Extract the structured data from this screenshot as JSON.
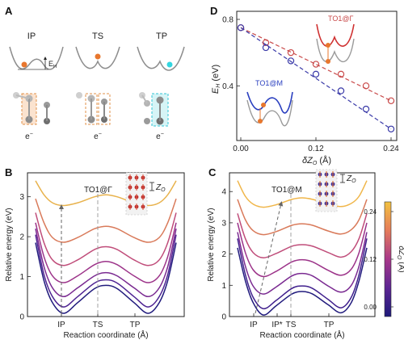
{
  "panels": {
    "a": {
      "label": "A",
      "states": [
        "IP",
        "TS",
        "TP"
      ],
      "eh_label": "E",
      "eh_sub": "H",
      "electron": "e",
      "electron_sup": "−"
    },
    "b": {
      "label": "B"
    },
    "c": {
      "label": "C"
    },
    "d": {
      "label": "D"
    }
  },
  "colors": {
    "dz_scale": [
      "#1e1a7a",
      "#3c1e8c",
      "#5c2593",
      "#812d92",
      "#a8388a",
      "#cc5579",
      "#e57b5a",
      "#f2a850",
      "#f2c240"
    ],
    "series_b": [
      "#211b7d",
      "#4e2392",
      "#7a2a91",
      "#9c3389",
      "#c04d7a",
      "#d97a5a",
      "#e8b24c"
    ],
    "series_c": [
      "#211b7d",
      "#40208d",
      "#7a2a91",
      "#9c3389",
      "#c04d7a",
      "#d97a5a",
      "#f0b64a"
    ],
    "gamma_line": "#c94a4a",
    "m_line": "#3a3aa8",
    "inset_gamma": "#cf3030",
    "inset_m": "#2a3fbf",
    "orange_atom": "#e8772e",
    "cyan_atom": "#33d6e0"
  },
  "chart_data": [
    {
      "id": "B",
      "type": "line",
      "xlabel": "Reaction coordinate (Å)",
      "ylabel": "Relative energy (eV)",
      "ylim": [
        0,
        3.6
      ],
      "y_ticks": [
        0,
        1,
        2,
        3
      ],
      "x_ticks": [
        "IP",
        "TS",
        "TP"
      ],
      "annotation": "TO1@Γ",
      "inset_label": "Z",
      "inset_sub": "O",
      "x": [
        0,
        0.06,
        0.12,
        0.2,
        0.3,
        0.42,
        0.5,
        0.58,
        0.7,
        0.8,
        0.88,
        0.94,
        1.0
      ],
      "series": [
        {
          "values": [
            1.85,
            0.9,
            0.35,
            0.08,
            0.35,
            0.7,
            0.78,
            0.7,
            0.35,
            0.08,
            0.35,
            0.9,
            1.85
          ]
        },
        {
          "values": [
            2.05,
            1.05,
            0.5,
            0.24,
            0.5,
            0.84,
            0.92,
            0.84,
            0.5,
            0.24,
            0.5,
            1.05,
            2.05
          ]
        },
        {
          "values": [
            2.2,
            1.25,
            0.72,
            0.5,
            0.72,
            1.02,
            1.1,
            1.02,
            0.72,
            0.5,
            0.72,
            1.25,
            2.2
          ]
        },
        {
          "values": [
            2.35,
            1.5,
            1.02,
            0.85,
            1.02,
            1.3,
            1.38,
            1.3,
            1.02,
            0.85,
            1.02,
            1.5,
            2.35
          ]
        },
        {
          "values": [
            2.6,
            1.85,
            1.42,
            1.28,
            1.42,
            1.68,
            1.75,
            1.68,
            1.42,
            1.28,
            1.42,
            1.85,
            2.6
          ]
        },
        {
          "values": [
            2.95,
            2.35,
            1.98,
            1.86,
            1.98,
            2.2,
            2.26,
            2.2,
            1.98,
            1.86,
            1.98,
            2.35,
            2.95
          ]
        },
        {
          "values": [
            3.4,
            3.05,
            2.85,
            2.78,
            2.85,
            3.0,
            3.05,
            3.0,
            2.85,
            2.78,
            2.85,
            3.05,
            3.4
          ]
        }
      ]
    },
    {
      "id": "C",
      "type": "line",
      "xlabel": "Reaction coordinate (Å)",
      "ylabel": "Relative energy (eV)",
      "ylim": [
        0,
        4.6
      ],
      "y_ticks": [
        0,
        1,
        2,
        3,
        4
      ],
      "x_ticks": [
        "IP",
        "IP*",
        "TS",
        "TP"
      ],
      "annotation": "TO1@M",
      "inset_label": "Z",
      "inset_sub": "O",
      "x": [
        0,
        0.06,
        0.12,
        0.2,
        0.3,
        0.42,
        0.5,
        0.58,
        0.7,
        0.8,
        0.88,
        0.94,
        1.0
      ],
      "series": [
        {
          "values": [
            2.2,
            1.15,
            0.45,
            0.05,
            0.35,
            0.72,
            0.8,
            0.72,
            0.38,
            0.12,
            0.45,
            1.15,
            2.2
          ]
        },
        {
          "values": [
            2.5,
            1.35,
            0.62,
            0.25,
            0.52,
            0.9,
            0.98,
            0.9,
            0.55,
            0.28,
            0.62,
            1.35,
            2.5
          ]
        },
        {
          "values": [
            2.7,
            1.62,
            0.98,
            0.72,
            0.95,
            1.3,
            1.38,
            1.3,
            0.98,
            0.78,
            1.0,
            1.62,
            2.7
          ]
        },
        {
          "values": [
            3.0,
            2.05,
            1.5,
            1.28,
            1.45,
            1.75,
            1.82,
            1.75,
            1.48,
            1.32,
            1.52,
            2.05,
            3.0
          ]
        },
        {
          "values": [
            3.3,
            2.5,
            2.05,
            1.88,
            2.02,
            2.25,
            2.3,
            2.25,
            2.05,
            1.9,
            2.08,
            2.5,
            3.3
          ]
        },
        {
          "values": [
            3.75,
            3.1,
            2.75,
            2.62,
            2.72,
            2.92,
            2.97,
            2.92,
            2.74,
            2.64,
            2.78,
            3.1,
            3.75
          ]
        },
        {
          "values": [
            4.35,
            3.85,
            3.6,
            3.5,
            3.58,
            3.75,
            3.8,
            3.75,
            3.6,
            3.52,
            3.62,
            3.85,
            4.35
          ]
        }
      ]
    },
    {
      "id": "D",
      "type": "scatter",
      "xlabel": "δZ",
      "xlabel_sub": "O",
      "xlabel_unit": " (Å)",
      "ylabel": "E",
      "ylabel_sub": "H",
      "ylabel_unit": " (eV)",
      "xlim": [
        0,
        0.24
      ],
      "ylim": [
        0.1,
        0.8
      ],
      "x_ticks": [
        "0.00",
        "0.12",
        "0.24"
      ],
      "y_ticks": [
        "0.4",
        "0.8"
      ],
      "series": [
        {
          "name": "TO1@Γ",
          "x": [
            0,
            0.04,
            0.08,
            0.12,
            0.16,
            0.2,
            0.24
          ],
          "y": [
            0.75,
            0.66,
            0.6,
            0.53,
            0.47,
            0.4,
            0.31
          ]
        },
        {
          "name": "TO1@M",
          "x": [
            0,
            0.04,
            0.08,
            0.12,
            0.16,
            0.2,
            0.24
          ],
          "y": [
            0.75,
            0.63,
            0.55,
            0.47,
            0.37,
            0.26,
            0.14
          ]
        }
      ]
    }
  ],
  "colorbar": {
    "label": "δZ",
    "label_sub": "O",
    "label_unit": " (Å)",
    "ticks": [
      "0.24",
      "0.12",
      "0.00"
    ]
  }
}
